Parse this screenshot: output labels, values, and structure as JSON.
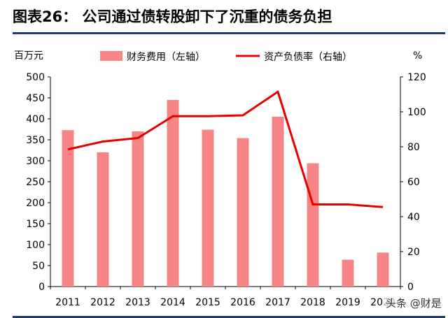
{
  "header": {
    "title": "图表26：   公司通过债转股卸下了沉重的债务负担"
  },
  "watermark": "头条 @财是",
  "chart_data": {
    "type": "bar",
    "categories": [
      "2011",
      "2012",
      "2013",
      "2014",
      "2015",
      "2016",
      "2017",
      "2018",
      "2019",
      "2020"
    ],
    "series": [
      {
        "name": "财务费用（左轴）",
        "type": "bar",
        "axis": "left",
        "color": "#f78585",
        "values": [
          373,
          320,
          370,
          445,
          374,
          354,
          405,
          294,
          64,
          81
        ]
      },
      {
        "name": "资产负债率（右轴）",
        "type": "line",
        "axis": "right",
        "color": "#e60000",
        "values": [
          78.5,
          83,
          85,
          97.5,
          97.5,
          98,
          111.5,
          47,
          47,
          45.5
        ]
      }
    ],
    "y_left": {
      "label": "百万元",
      "ylim": [
        0,
        500
      ],
      "ticks": [
        0,
        50,
        100,
        150,
        200,
        250,
        300,
        350,
        400,
        450,
        500
      ]
    },
    "y_right": {
      "label": "%",
      "ylim": [
        0,
        120
      ],
      "ticks": [
        0,
        20,
        40,
        60,
        80,
        100,
        120
      ]
    },
    "legend_position": "top",
    "grid": false
  }
}
